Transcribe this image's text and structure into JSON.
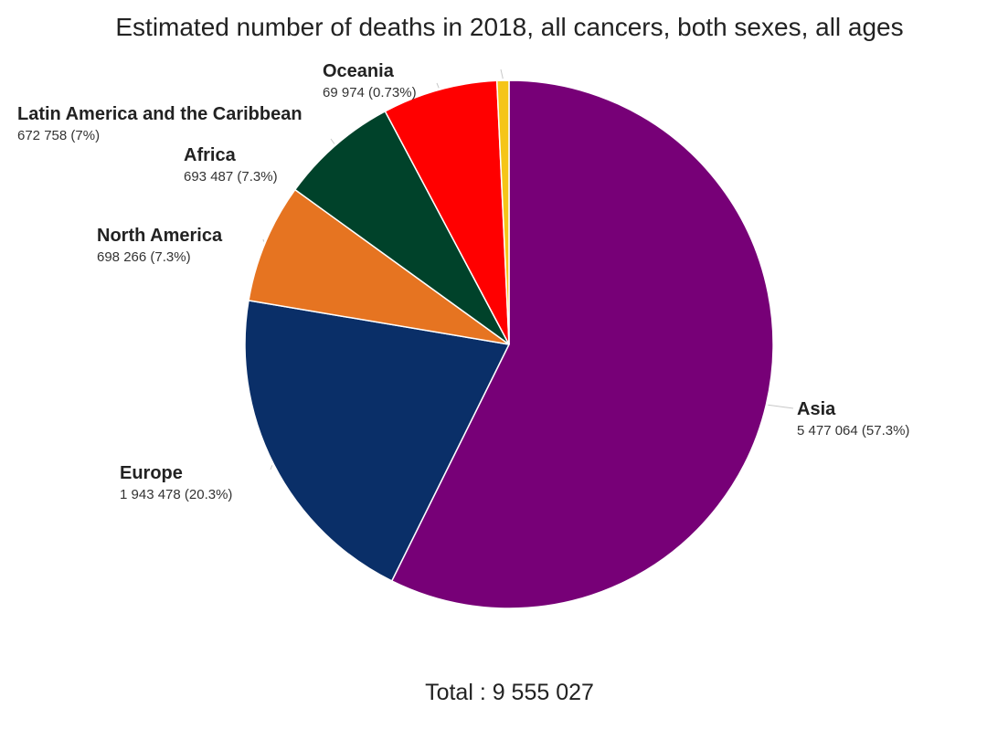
{
  "chart_data": {
    "type": "pie",
    "title": "Estimated number of deaths in 2018, all cancers, both sexes, all ages",
    "total_label": "Total : 9 555 027",
    "slices": [
      {
        "name": "Asia",
        "value": 5477064,
        "value_label": "5 477 064 (57.3%)",
        "color": "#770077"
      },
      {
        "name": "Europe",
        "value": 1943478,
        "value_label": "1 943 478 (20.3%)",
        "color": "#0a2f68"
      },
      {
        "name": "North America",
        "value": 698266,
        "value_label": "698 266 (7.3%)",
        "color": "#e67421"
      },
      {
        "name": "Africa",
        "value": 693487,
        "value_label": "693 487 (7.3%)",
        "color": "#00422a"
      },
      {
        "name": "Latin America and the Caribbean",
        "value": 672758,
        "value_label": "672 758 (7%)",
        "color": "#ff0000"
      },
      {
        "name": "Oceania",
        "value": 69974,
        "value_label": "69 974 (0.73%)",
        "color": "#f5c518"
      }
    ]
  }
}
